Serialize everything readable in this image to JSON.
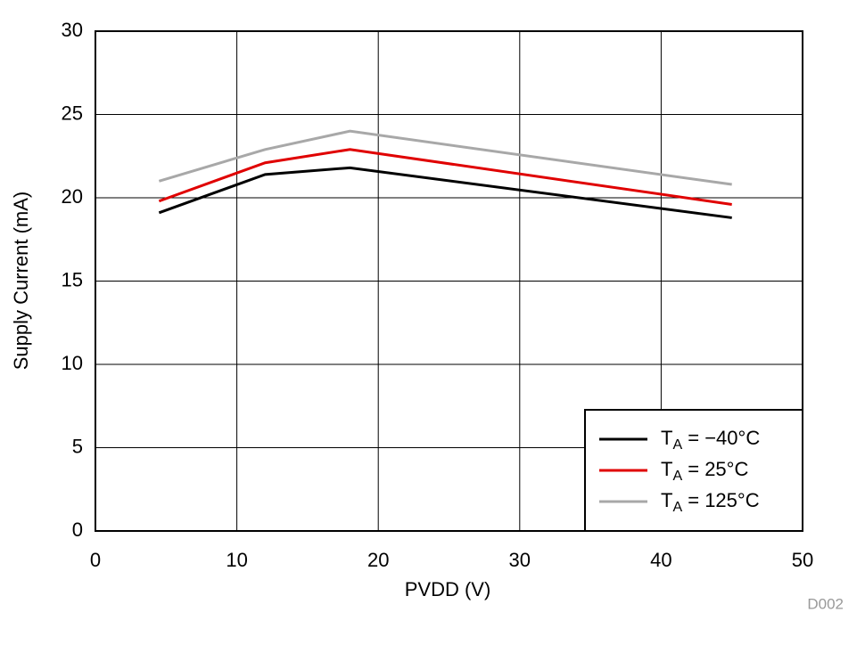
{
  "chart_data": {
    "type": "line",
    "xlabel": "PVDD (V)",
    "ylabel": "Supply Current (mA)",
    "annotation": "D002",
    "x": [
      4.5,
      12,
      18,
      45
    ],
    "series": [
      {
        "name": "TA = −40°C",
        "color": "#000000",
        "values": [
          19.1,
          21.4,
          21.8,
          18.8
        ]
      },
      {
        "name": "TA = 25°C",
        "color": "#e00000",
        "values": [
          19.8,
          22.1,
          22.9,
          19.6
        ]
      },
      {
        "name": "TA = 125°C",
        "color": "#a8a8a8",
        "values": [
          21.0,
          22.9,
          24.0,
          20.8
        ]
      }
    ],
    "xlim": [
      0,
      50
    ],
    "xticks": [
      0,
      10,
      20,
      30,
      40,
      50
    ],
    "ylim": [
      0,
      30
    ],
    "yticks": [
      0,
      5,
      10,
      15,
      20,
      25,
      30
    ],
    "grid": true,
    "legend": "lower right"
  }
}
